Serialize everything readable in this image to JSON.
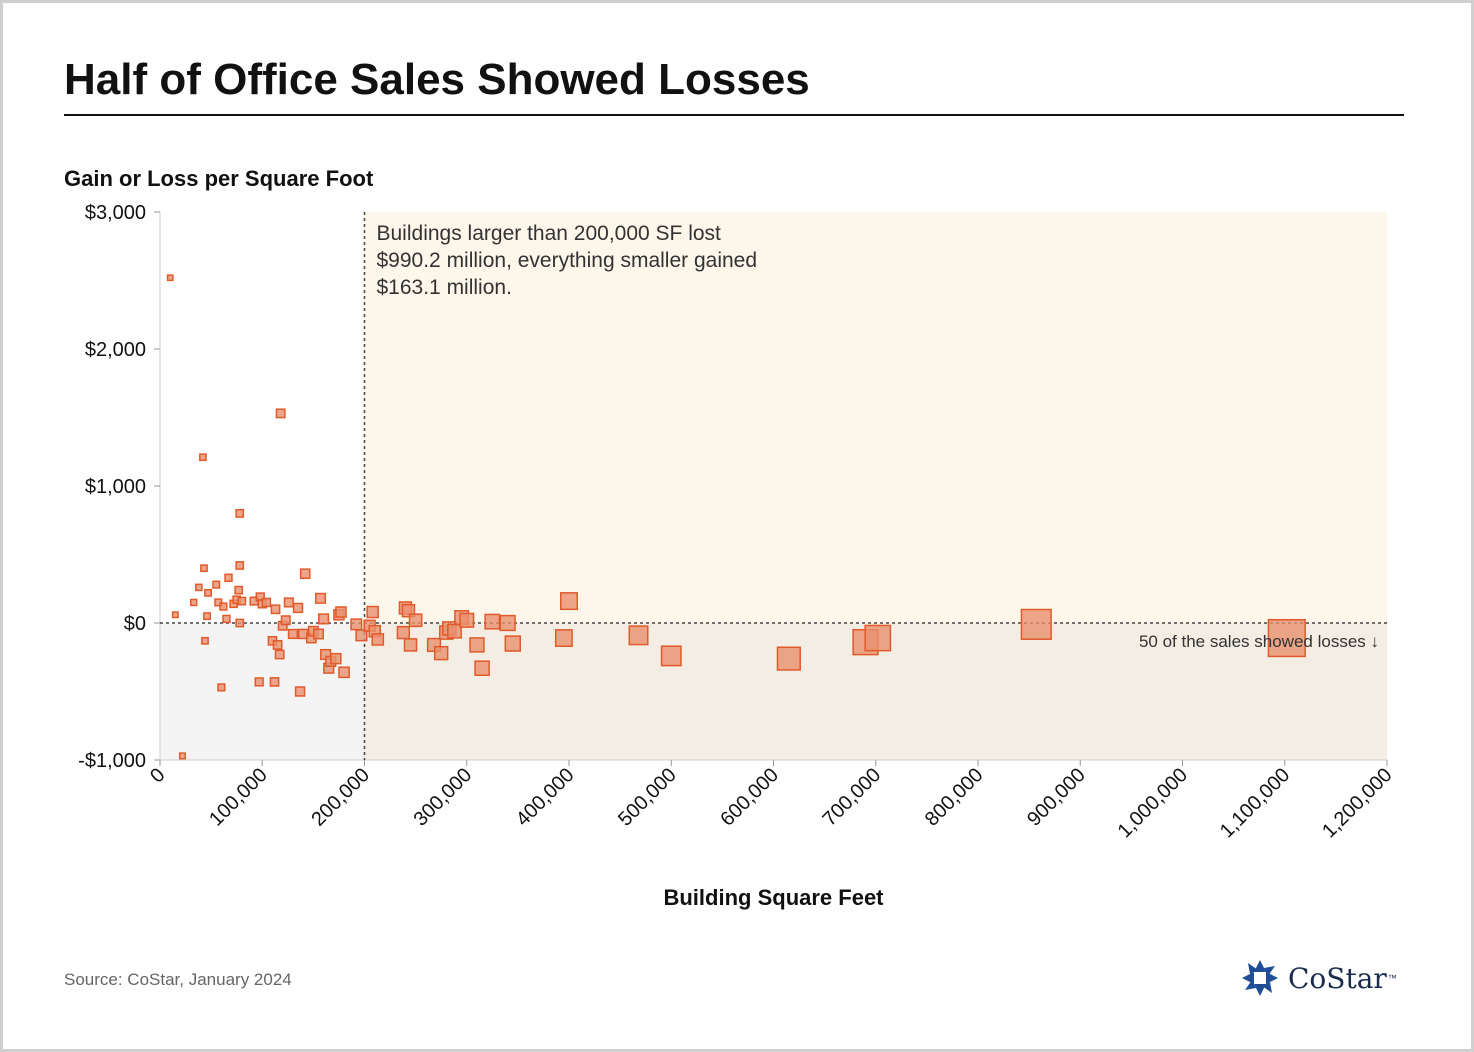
{
  "title": "Half of Office Sales Showed Losses",
  "source": "Source: CoStar, January 2024",
  "logo": {
    "text": "CoStar",
    "trademark": "™"
  },
  "colors": {
    "marker_fill": "#e8906e",
    "marker_stroke": "#e15a2a",
    "gain_region": "#fdf6ea",
    "loss_region_right": "#f4ede3",
    "loss_region_left": "#f4f4f4",
    "logo_blue": "#1f4e96"
  },
  "chart_data": {
    "type": "scatter",
    "ylabel": "Gain or Loss per Square Foot",
    "xlabel": "Building Square Feet",
    "xlim": [
      0,
      1200000
    ],
    "ylim": [
      -1000,
      3000
    ],
    "x_ticks": [
      {
        "value": 0,
        "label": "0"
      },
      {
        "value": 100000,
        "label": "100,000"
      },
      {
        "value": 200000,
        "label": "200,000"
      },
      {
        "value": 300000,
        "label": "300,000"
      },
      {
        "value": 400000,
        "label": "400,000"
      },
      {
        "value": 500000,
        "label": "500,000"
      },
      {
        "value": 600000,
        "label": "600,000"
      },
      {
        "value": 700000,
        "label": "700,000"
      },
      {
        "value": 800000,
        "label": "800,000"
      },
      {
        "value": 900000,
        "label": "900,000"
      },
      {
        "value": 1000000,
        "label": "1,000,000"
      },
      {
        "value": 1100000,
        "label": "1,100,000"
      },
      {
        "value": 1200000,
        "label": "1,200,000"
      }
    ],
    "y_ticks": [
      {
        "value": 3000,
        "label": "$3,000"
      },
      {
        "value": 2000,
        "label": "$2,000"
      },
      {
        "value": 1000,
        "label": "$1,000"
      },
      {
        "value": 0,
        "label": "$0"
      },
      {
        "value": -1000,
        "label": "-$1,000"
      }
    ],
    "threshold_x": 200000,
    "annotations": [
      {
        "text_lines": [
          "Buildings larger than 200,000 SF lost",
          "$990.2 million, everything smaller gained",
          "$163.1 million."
        ]
      },
      {
        "text": "50 of the sales showed losses ↓"
      }
    ],
    "points": [
      {
        "x": 10000,
        "y": 2520
      },
      {
        "x": 15000,
        "y": 60
      },
      {
        "x": 22000,
        "y": -970
      },
      {
        "x": 33000,
        "y": 150
      },
      {
        "x": 38000,
        "y": 260
      },
      {
        "x": 42000,
        "y": 1210
      },
      {
        "x": 43000,
        "y": 400
      },
      {
        "x": 44000,
        "y": -130
      },
      {
        "x": 46000,
        "y": 50
      },
      {
        "x": 47000,
        "y": 220
      },
      {
        "x": 55000,
        "y": 280
      },
      {
        "x": 57000,
        "y": 150
      },
      {
        "x": 60000,
        "y": -470
      },
      {
        "x": 62000,
        "y": 120
      },
      {
        "x": 65000,
        "y": 30
      },
      {
        "x": 67000,
        "y": 330
      },
      {
        "x": 72000,
        "y": 140
      },
      {
        "x": 75000,
        "y": 170
      },
      {
        "x": 77000,
        "y": 240
      },
      {
        "x": 78000,
        "y": 0
      },
      {
        "x": 78000,
        "y": 800
      },
      {
        "x": 78000,
        "y": 420
      },
      {
        "x": 80000,
        "y": 160
      },
      {
        "x": 92000,
        "y": 160
      },
      {
        "x": 97000,
        "y": -430
      },
      {
        "x": 98000,
        "y": 190
      },
      {
        "x": 100000,
        "y": 140
      },
      {
        "x": 104000,
        "y": 150
      },
      {
        "x": 110000,
        "y": -130
      },
      {
        "x": 112000,
        "y": -430
      },
      {
        "x": 113000,
        "y": 100
      },
      {
        "x": 115000,
        "y": -160
      },
      {
        "x": 117000,
        "y": -230
      },
      {
        "x": 118000,
        "y": 1530
      },
      {
        "x": 120000,
        "y": -20
      },
      {
        "x": 123000,
        "y": 20
      },
      {
        "x": 126000,
        "y": 150
      },
      {
        "x": 130000,
        "y": -80
      },
      {
        "x": 135000,
        "y": 110
      },
      {
        "x": 137000,
        "y": -500
      },
      {
        "x": 140000,
        "y": -80
      },
      {
        "x": 142000,
        "y": 360
      },
      {
        "x": 148000,
        "y": -110
      },
      {
        "x": 150000,
        "y": -60
      },
      {
        "x": 155000,
        "y": -80
      },
      {
        "x": 157000,
        "y": 180
      },
      {
        "x": 160000,
        "y": 30
      },
      {
        "x": 162000,
        "y": -230
      },
      {
        "x": 165000,
        "y": -330
      },
      {
        "x": 167000,
        "y": -280
      },
      {
        "x": 172000,
        "y": -260
      },
      {
        "x": 175000,
        "y": 60
      },
      {
        "x": 177000,
        "y": 80
      },
      {
        "x": 180000,
        "y": -360
      },
      {
        "x": 192000,
        "y": -10
      },
      {
        "x": 197000,
        "y": -90
      },
      {
        "x": 205000,
        "y": -20
      },
      {
        "x": 208000,
        "y": 80
      },
      {
        "x": 210000,
        "y": -60
      },
      {
        "x": 213000,
        "y": -120
      },
      {
        "x": 238000,
        "y": -70
      },
      {
        "x": 240000,
        "y": 110
      },
      {
        "x": 243000,
        "y": 90
      },
      {
        "x": 245000,
        "y": -160
      },
      {
        "x": 250000,
        "y": 20
      },
      {
        "x": 268000,
        "y": -160
      },
      {
        "x": 275000,
        "y": -220
      },
      {
        "x": 280000,
        "y": -70
      },
      {
        "x": 283000,
        "y": -40
      },
      {
        "x": 288000,
        "y": -60
      },
      {
        "x": 295000,
        "y": 40
      },
      {
        "x": 300000,
        "y": 20
      },
      {
        "x": 310000,
        "y": -160
      },
      {
        "x": 315000,
        "y": -330
      },
      {
        "x": 325000,
        "y": 10
      },
      {
        "x": 340000,
        "y": 0
      },
      {
        "x": 345000,
        "y": -150
      },
      {
        "x": 395000,
        "y": -110
      },
      {
        "x": 400000,
        "y": 160
      },
      {
        "x": 468000,
        "y": -90
      },
      {
        "x": 500000,
        "y": -240
      },
      {
        "x": 615000,
        "y": -260
      },
      {
        "x": 690000,
        "y": -140
      },
      {
        "x": 702000,
        "y": -110
      },
      {
        "x": 857000,
        "y": -10
      },
      {
        "x": 1102000,
        "y": -110
      }
    ]
  }
}
